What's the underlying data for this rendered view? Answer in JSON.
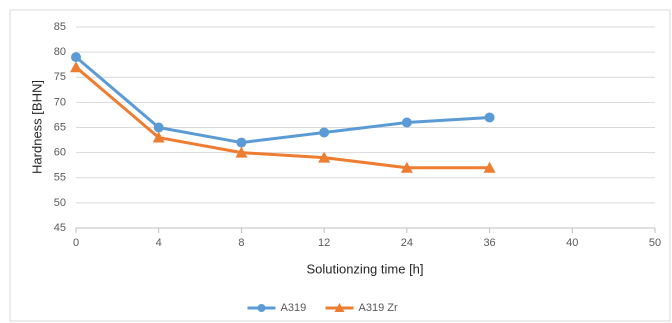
{
  "chart_data": {
    "type": "line",
    "x_label": "Solutionzing time [h]",
    "y_label": "Hardness [BHN]",
    "categories": [
      "0",
      "4",
      "8",
      "12",
      "24",
      "36",
      "40",
      "50"
    ],
    "series": [
      {
        "name": "A319",
        "color": "#5b9bd5",
        "marker": "circle",
        "values": [
          79,
          65,
          62,
          64,
          66,
          67,
          null,
          null
        ]
      },
      {
        "name": "A319 Zr",
        "color": "#ed7d31",
        "marker": "triangle",
        "values": [
          77,
          63,
          60,
          59,
          57,
          57,
          null,
          null
        ]
      }
    ],
    "ylim": [
      45,
      85
    ],
    "yticks": [
      45,
      50,
      55,
      60,
      65,
      70,
      75,
      80,
      85
    ],
    "grid": true,
    "legend": "bottom"
  }
}
